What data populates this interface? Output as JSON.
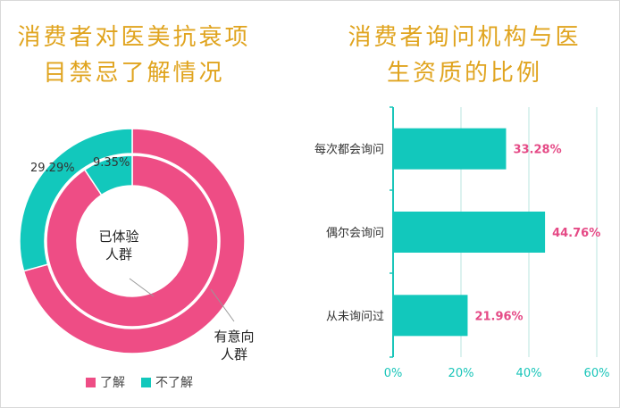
{
  "colors": {
    "pink": "#ee4d85",
    "teal": "#12c8bc",
    "title": "#e0a41f",
    "label_pink": "#e54a86",
    "grid": "#b8e5df",
    "axis": "#19c5b9"
  },
  "left_panel": {
    "title_lines": [
      "消费者对医美抗衰项",
      "目禁忌了解情况"
    ],
    "legend": [
      {
        "label": "了解",
        "color": "#ee4d85"
      },
      {
        "label": "不了解",
        "color": "#12c8bc"
      }
    ]
  },
  "right_panel": {
    "title_lines": [
      "消费者询问机构与医",
      "生资质的比例"
    ]
  },
  "chart_data": [
    {
      "type": "pie",
      "title": "消费者对医美抗衰项目禁忌了解情况",
      "categories": [
        "了解",
        "不了解"
      ],
      "rings": [
        {
          "name": "有意向人群",
          "values": [
            70.71,
            29.29
          ],
          "labels": [
            "",
            "29.29%"
          ]
        },
        {
          "name": "已体验人群",
          "values": [
            90.65,
            9.35
          ],
          "labels": [
            "",
            "9.35%"
          ]
        }
      ],
      "annotations": [
        "已体验\n人群",
        "有意向\n人群"
      ],
      "legend_position": "bottom"
    },
    {
      "type": "bar",
      "orientation": "horizontal",
      "title": "消费者询问机构与医生资质的比例",
      "categories": [
        "每次都会询问",
        "偶尔会询问",
        "从未询问过"
      ],
      "values": [
        33.28,
        44.76,
        21.96
      ],
      "value_labels": [
        "33.28%",
        "44.76%",
        "21.96%"
      ],
      "xlim": [
        0,
        60
      ],
      "xticks": [
        "0%",
        "20%",
        "40%",
        "60%"
      ],
      "grid": true
    }
  ]
}
